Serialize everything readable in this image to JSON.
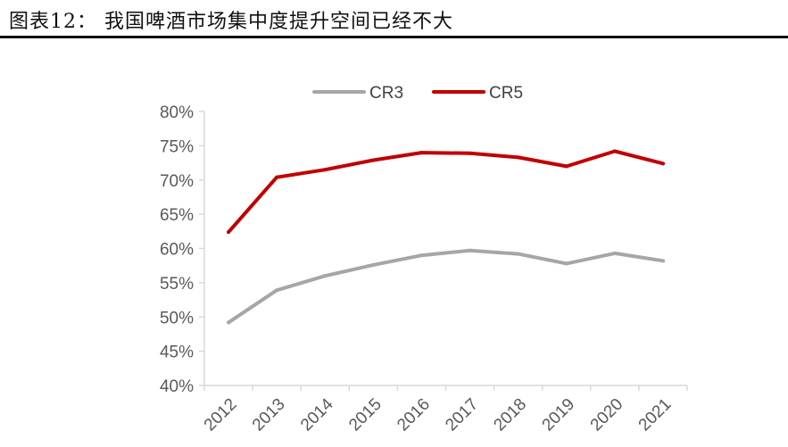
{
  "title": "图表12：  我国啤酒市场集中度提升空间已经不大",
  "chart_data": {
    "type": "line",
    "title": "",
    "xlabel": "",
    "ylabel": "",
    "categories": [
      "2012",
      "2013",
      "2014",
      "2015",
      "2016",
      "2017",
      "2018",
      "2019",
      "2020",
      "2021"
    ],
    "ylim": [
      0.4,
      0.8
    ],
    "yticks": [
      "40%",
      "45%",
      "50%",
      "55%",
      "60%",
      "65%",
      "70%",
      "75%",
      "80%"
    ],
    "grid": false,
    "legend_position": "top-center",
    "series": [
      {
        "name": "CR3",
        "color": "#a6a6a6",
        "values": [
          0.492,
          0.539,
          0.56,
          0.576,
          0.59,
          0.597,
          0.592,
          0.578,
          0.593,
          0.582
        ]
      },
      {
        "name": "CR5",
        "color": "#c00000",
        "values": [
          0.624,
          0.704,
          0.715,
          0.729,
          0.74,
          0.739,
          0.733,
          0.72,
          0.742,
          0.724
        ]
      }
    ]
  }
}
